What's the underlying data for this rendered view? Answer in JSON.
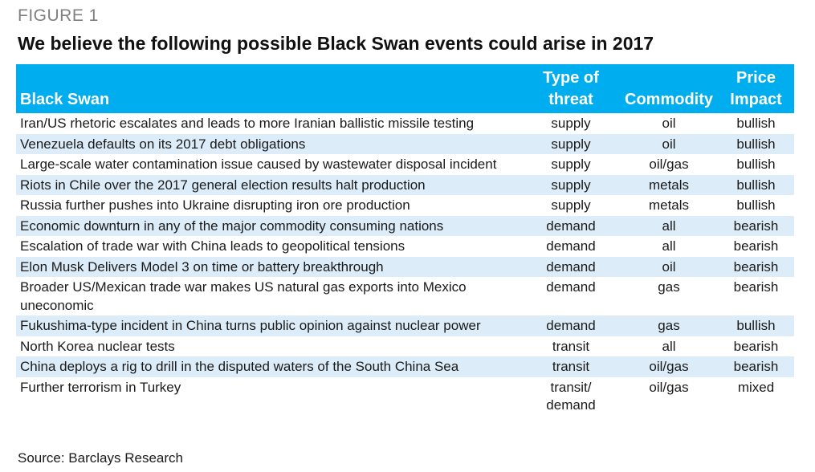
{
  "figure": {
    "label": "FIGURE 1",
    "title": "We believe the following possible Black Swan events could arise in 2017",
    "source": "Source: Barclays Research"
  },
  "table": {
    "headers": {
      "event": "Black Swan",
      "threat_line1": "Type of",
      "threat_line2": "threat",
      "commodity": "Commodity",
      "impact_line1": "Price",
      "impact_line2": "Impact"
    },
    "rows": [
      {
        "event": "Iran/US rhetoric escalates and leads to more Iranian ballistic missile testing",
        "threat": "supply",
        "commodity": "oil",
        "impact": "bullish"
      },
      {
        "event": "Venezuela defaults on its 2017 debt obligations",
        "threat": "supply",
        "commodity": "oil",
        "impact": "bullish"
      },
      {
        "event": "Large-scale water contamination issue caused by wastewater disposal incident",
        "threat": "supply",
        "commodity": "oil/gas",
        "impact": "bullish"
      },
      {
        "event": "Riots in Chile over the 2017 general election results halt production",
        "threat": "supply",
        "commodity": "metals",
        "impact": "bullish"
      },
      {
        "event": "Russia further pushes into Ukraine disrupting iron ore production",
        "threat": "supply",
        "commodity": "metals",
        "impact": "bullish"
      },
      {
        "event": "Economic downturn in any of the major commodity consuming nations",
        "threat": "demand",
        "commodity": "all",
        "impact": "bearish"
      },
      {
        "event": "Escalation of trade war with China leads to geopolitical tensions",
        "threat": "demand",
        "commodity": "all",
        "impact": "bearish"
      },
      {
        "event": "Elon Musk Delivers Model 3 on time or battery breakthrough",
        "threat": "demand",
        "commodity": "oil",
        "impact": "bearish"
      },
      {
        "event": "Broader US/Mexican trade war    makes US natural gas exports into Mexico uneconomic",
        "threat": "demand",
        "commodity": "gas",
        "impact": "bearish"
      },
      {
        "event": "Fukushima-type incident in China turns public opinion against nuclear power",
        "threat": "demand",
        "commodity": "gas",
        "impact": "bullish"
      },
      {
        "event": "North Korea nuclear tests",
        "threat": "transit",
        "commodity": "all",
        "impact": "bearish"
      },
      {
        "event": "China deploys a rig to drill in the disputed waters of the South China Sea",
        "threat": "transit",
        "commodity": "oil/gas",
        "impact": "bearish"
      },
      {
        "event": "Further terrorism in Turkey",
        "threat": "transit/ demand",
        "commodity": "oil/gas",
        "impact": "mixed"
      }
    ]
  }
}
